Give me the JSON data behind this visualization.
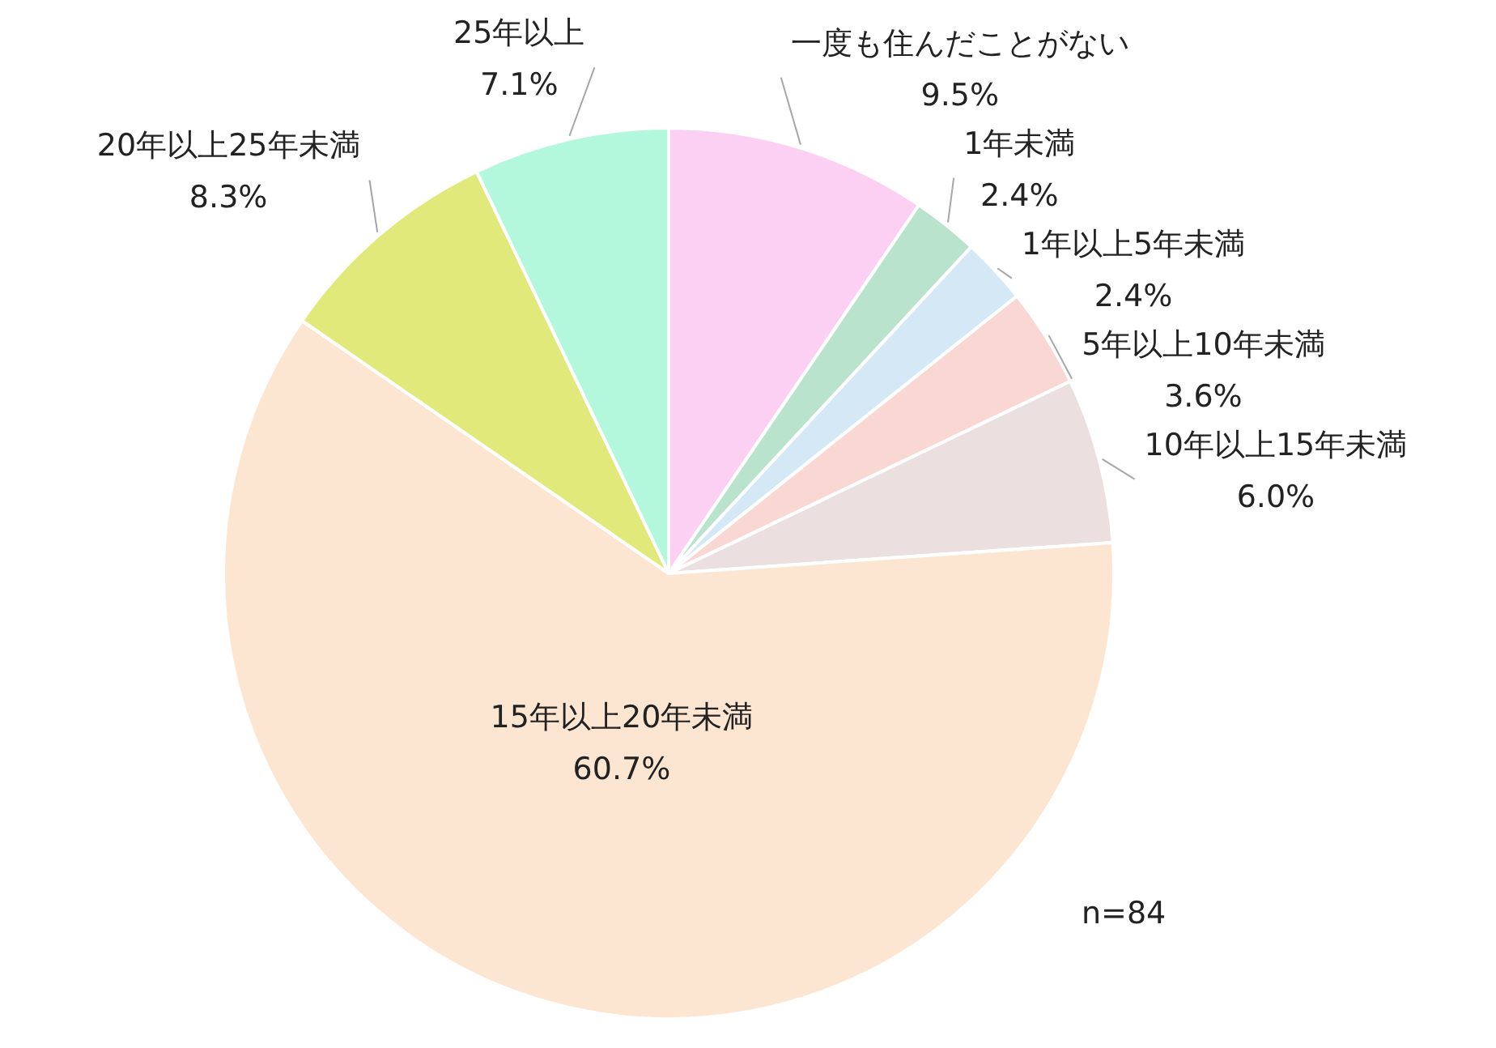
{
  "chart_data": {
    "type": "pie",
    "categories": [
      "一度も住んだことがない",
      "1年未満",
      "1年以上5年未満",
      "5年以上10年未満",
      "10年以上15年未満",
      "15年以上20年未満",
      "20年以上25年未満",
      "25年以上"
    ],
    "values": [
      9.5,
      2.4,
      2.4,
      3.6,
      6.0,
      60.7,
      8.3,
      7.1
    ],
    "value_labels": [
      "9.5%",
      "2.4%",
      "2.4%",
      "3.6%",
      "6.0%",
      "60.7%",
      "8.3%",
      "7.1%"
    ],
    "colors": [
      "#fcd0f2",
      "#b9e3cc",
      "#d4e8f6",
      "#f9d8d4",
      "#ebe0df",
      "#fce6d1",
      "#e1e97a",
      "#b3f7dc"
    ],
    "annotations": [
      "n=84"
    ],
    "legend": false
  }
}
